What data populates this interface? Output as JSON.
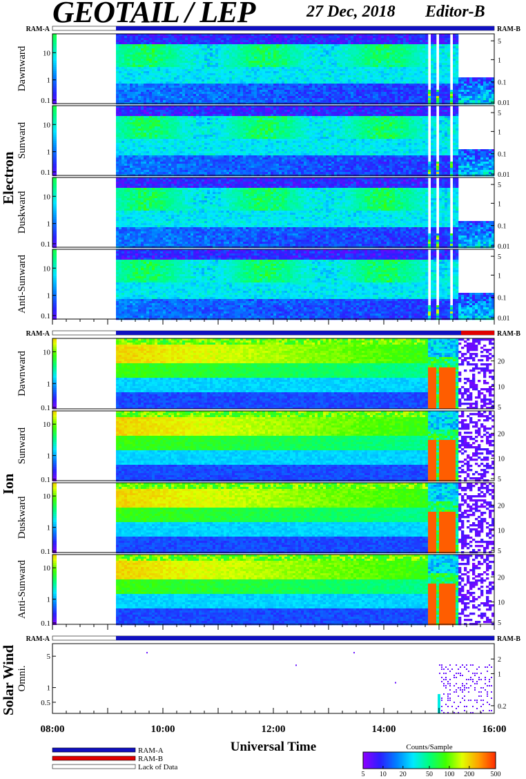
{
  "header": {
    "title": "GEOTAIL / LEP",
    "date": "27 Dec, 2018",
    "editor": "Editor-B"
  },
  "chart_data": {
    "type": "heatmap",
    "xlabel": "Universal Time",
    "x_ticks": [
      "08:00",
      "10:00",
      "12:00",
      "14:00",
      "16:00"
    ],
    "x_range_hours": [
      8,
      16
    ],
    "data_gap_hours": [
      8.0,
      9.15
    ],
    "ram_labels": {
      "left": "RAM-A",
      "right": "RAM-B"
    },
    "colorbar": {
      "title": "Counts/Sample",
      "ticks": [
        "5",
        "10",
        "20",
        "50",
        "100",
        "200",
        "500"
      ],
      "range": [
        5,
        500
      ],
      "scale": "log",
      "colors": [
        "#8a00ff",
        "#2a1fff",
        "#0080ff",
        "#00e8ff",
        "#00ff7a",
        "#40ff00",
        "#e0ff00",
        "#ffa000",
        "#ff3000"
      ]
    },
    "legend": [
      {
        "label": "RAM-A",
        "color": "#1010c0"
      },
      {
        "label": "RAM-B",
        "color": "#e00000"
      },
      {
        "label": "Lack of Data",
        "color": "#ffffff"
      }
    ],
    "groups": [
      {
        "name": "Electron",
        "panels": [
          {
            "label": "Dawnward",
            "left_ticks": [
              "10",
              "1",
              "0.1"
            ],
            "right_ticks": [
              "5",
              "1",
              "0.1",
              "0.01"
            ]
          },
          {
            "label": "Sunward",
            "left_ticks": [
              "10",
              "1",
              "0.1"
            ],
            "right_ticks": [
              "5",
              "1",
              "0.1",
              "0.01"
            ]
          },
          {
            "label": "Duskward",
            "left_ticks": [
              "10",
              "1",
              "0.1"
            ],
            "right_ticks": [
              "5",
              "1",
              "0.1",
              "0.01"
            ]
          },
          {
            "label": "Anti-Sunward",
            "left_ticks": [
              "10",
              "1",
              "0.1"
            ],
            "right_ticks": [
              "5",
              "1",
              "0.1",
              "0.01"
            ]
          }
        ]
      },
      {
        "name": "Ion",
        "panels": [
          {
            "label": "Dawnward",
            "left_ticks": [
              "10",
              "1",
              "0.1"
            ],
            "right_ticks": [
              "20",
              "10",
              "5"
            ]
          },
          {
            "label": "Sunward",
            "left_ticks": [
              "10",
              "1",
              "0.1"
            ],
            "right_ticks": [
              "20",
              "10",
              "5"
            ]
          },
          {
            "label": "Duskward",
            "left_ticks": [
              "10",
              "1",
              "0.1"
            ],
            "right_ticks": [
              "20",
              "10",
              "5"
            ]
          },
          {
            "label": "Anti-Sunward",
            "left_ticks": [
              "10",
              "1",
              "0.1"
            ],
            "right_ticks": [
              "20",
              "10",
              "5"
            ]
          }
        ]
      },
      {
        "name": "Solar Wind",
        "panels": [
          {
            "label": "Omni.",
            "left_ticks": [
              "5",
              "1",
              "0.5"
            ],
            "right_ticks": [
              "2",
              "1",
              "0.2"
            ]
          }
        ]
      }
    ]
  }
}
